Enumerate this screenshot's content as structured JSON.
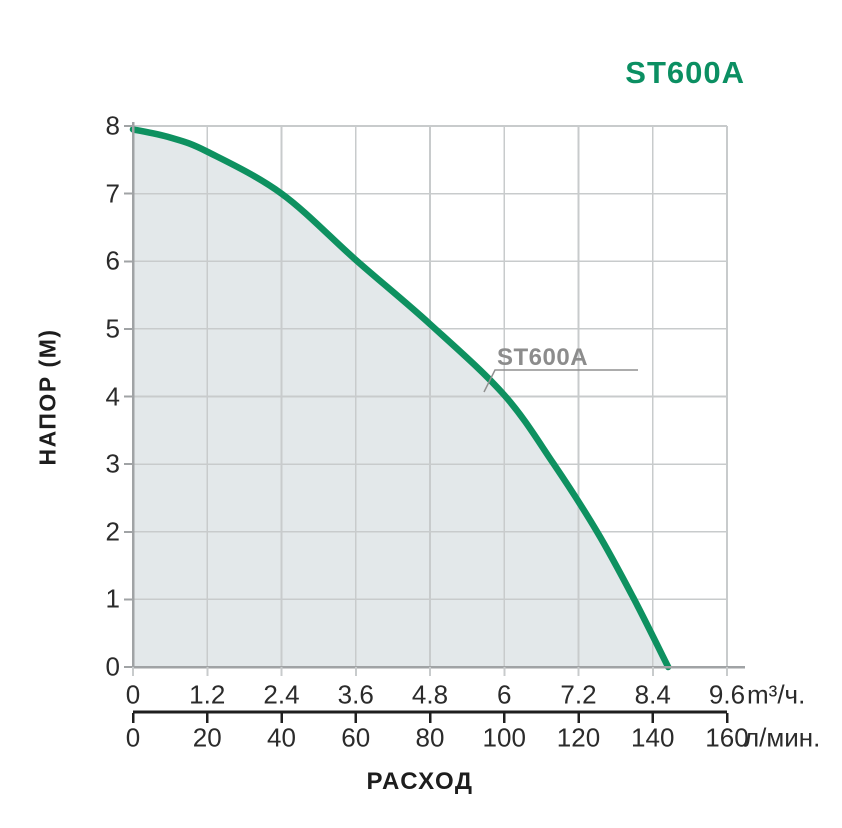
{
  "title": "ST600A",
  "colors": {
    "title_green": "#0B8F62",
    "curve_green": "#0E9160",
    "area_fill": "#E3E8EA",
    "grid": "#C8CBCC",
    "axis_gray": "#A0A3A5",
    "axis_black": "#1F1F1F",
    "tick_text": "#2B2B2B",
    "annotation_gray": "#8C8C8C"
  },
  "chart_data": {
    "type": "line",
    "title": "ST600A",
    "xlabel": "РАСХОД",
    "grid": true,
    "area_fill": true,
    "series": [
      {
        "name": "ST600A",
        "points_flow_m3h_head_m": [
          [
            0,
            7.95
          ],
          [
            0.6,
            7.83
          ],
          [
            1.2,
            7.62
          ],
          [
            2.4,
            7.0
          ],
          [
            3.6,
            6.02
          ],
          [
            4.8,
            5.07
          ],
          [
            6.0,
            4.02
          ],
          [
            6.8,
            3.0
          ],
          [
            7.5,
            2.0
          ],
          [
            8.1,
            1.0
          ],
          [
            8.65,
            0
          ]
        ]
      }
    ],
    "x_axis_primary": {
      "unit": "m³/ч.",
      "range": [
        0,
        9.6
      ],
      "ticks": [
        0,
        1.2,
        2.4,
        3.6,
        4.8,
        6,
        7.2,
        8.4,
        9.6
      ],
      "labels": [
        "0",
        "1.2",
        "2.4",
        "3.6",
        "4.8",
        "6",
        "7.2",
        "8.4",
        "9.6"
      ]
    },
    "x_axis_secondary": {
      "unit": "л/мин.",
      "range": [
        0,
        160
      ],
      "ticks": [
        0,
        20,
        40,
        60,
        80,
        100,
        120,
        140,
        160
      ],
      "labels": [
        "0",
        "20",
        "40",
        "60",
        "80",
        "100",
        "120",
        "140",
        "160"
      ]
    },
    "y_axis": {
      "label": "НАПОР (М)",
      "range": [
        0,
        8
      ],
      "ticks": [
        0,
        1,
        2,
        3,
        4,
        5,
        6,
        7,
        8
      ],
      "labels": [
        "0",
        "1",
        "2",
        "3",
        "4",
        "5",
        "6",
        "7",
        "8"
      ]
    },
    "annotation": {
      "label": "ST600A"
    }
  }
}
